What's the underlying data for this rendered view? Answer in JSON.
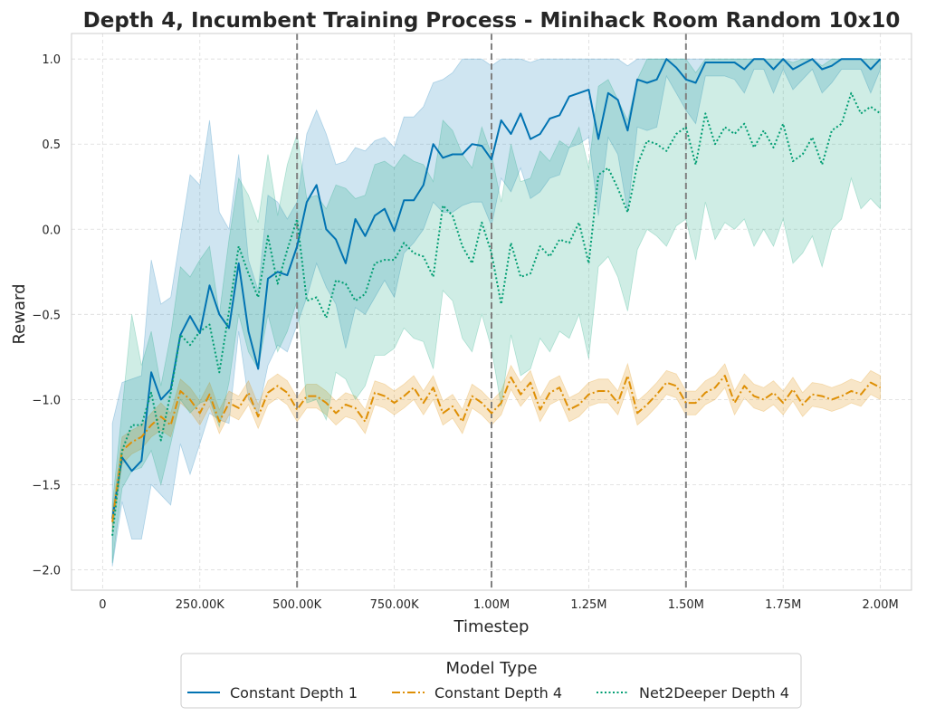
{
  "chart_data": {
    "type": "line",
    "title": "Depth 4, Incumbent Training Process - Minihack Room Random 10x10",
    "xlabel": "Timestep",
    "ylabel": "Reward",
    "xlim": [
      -80000,
      2080000
    ],
    "ylim": [
      -2.12,
      1.15
    ],
    "x_ticks": [
      0,
      250000,
      500000,
      750000,
      1000000,
      1250000,
      1500000,
      1750000,
      2000000
    ],
    "x_tick_labels": [
      "0",
      "250.00K",
      "500.00K",
      "750.00K",
      "1.00M",
      "1.25M",
      "1.50M",
      "1.75M",
      "2.00M"
    ],
    "y_ticks": [
      -2.0,
      -1.5,
      -1.0,
      -0.5,
      0.0,
      0.5,
      1.0
    ],
    "y_tick_labels": [
      "−2.0",
      "−1.5",
      "−1.0",
      "−0.5",
      "0.0",
      "0.5",
      "1.0"
    ],
    "vlines": [
      500000,
      1000000,
      1500000
    ],
    "grid": true,
    "legend": {
      "title": "Model Type",
      "placement": "bottom-center-outside"
    },
    "series": [
      {
        "name": "Constant Depth 1",
        "color": "#0173b2",
        "style": "solid",
        "x": [
          25000,
          50000,
          75000,
          100000,
          125000,
          150000,
          175000,
          200000,
          225000,
          250000,
          275000,
          300000,
          325000,
          350000,
          375000,
          400000,
          425000,
          450000,
          475000,
          500000,
          525000,
          550000,
          575000,
          600000,
          625000,
          650000,
          675000,
          700000,
          725000,
          750000,
          775000,
          800000,
          825000,
          850000,
          875000,
          900000,
          925000,
          950000,
          975000,
          1000000,
          1025000,
          1050000,
          1075000,
          1100000,
          1125000,
          1150000,
          1175000,
          1200000,
          1225000,
          1250000,
          1275000,
          1300000,
          1325000,
          1350000,
          1375000,
          1400000,
          1425000,
          1450000,
          1475000,
          1500000,
          1525000,
          1550000,
          1575000,
          1600000,
          1625000,
          1650000,
          1675000,
          1700000,
          1725000,
          1750000,
          1775000,
          1800000,
          1825000,
          1850000,
          1875000,
          1900000,
          1925000,
          1950000,
          1975000,
          2000000
        ],
        "y": [
          -1.7,
          -1.34,
          -1.42,
          -1.36,
          -0.84,
          -1.0,
          -0.94,
          -0.62,
          -0.51,
          -0.61,
          -0.33,
          -0.5,
          -0.58,
          -0.2,
          -0.6,
          -0.82,
          -0.29,
          -0.25,
          -0.27,
          -0.1,
          0.16,
          0.26,
          0.0,
          -0.06,
          -0.2,
          0.06,
          -0.04,
          0.08,
          0.12,
          -0.01,
          0.17,
          0.17,
          0.26,
          0.5,
          0.42,
          0.44,
          0.44,
          0.5,
          0.49,
          0.41,
          0.64,
          0.56,
          0.68,
          0.53,
          0.56,
          0.65,
          0.67,
          0.78,
          0.8,
          0.82,
          0.53,
          0.8,
          0.76,
          0.58,
          0.88,
          0.86,
          0.88,
          1.0,
          0.95,
          0.88,
          0.86,
          0.98,
          0.98,
          0.98,
          0.98,
          0.94,
          1.0,
          1.0,
          0.94,
          1.0,
          0.94,
          0.97,
          1.0,
          0.94,
          0.96,
          1.0,
          1.0,
          1.0,
          0.94,
          1.0
        ],
        "ci_low": [
          -1.98,
          -1.6,
          -1.82,
          -1.82,
          -1.5,
          -1.56,
          -1.62,
          -1.26,
          -1.44,
          -1.26,
          -1.08,
          -1.12,
          -1.14,
          -0.6,
          -1.0,
          -1.08,
          -0.8,
          -0.68,
          -0.72,
          -0.56,
          -0.4,
          -0.2,
          -0.34,
          -0.44,
          -0.7,
          -0.46,
          -0.5,
          -0.4,
          -0.3,
          -0.4,
          -0.14,
          -0.08,
          0.0,
          0.16,
          0.1,
          0.1,
          0.14,
          0.16,
          0.16,
          0.02,
          0.3,
          0.22,
          0.36,
          0.18,
          0.22,
          0.3,
          0.32,
          0.48,
          0.5,
          0.54,
          0.08,
          0.54,
          0.44,
          0.1,
          0.6,
          0.58,
          0.6,
          0.9,
          0.8,
          0.7,
          0.62,
          0.9,
          0.9,
          0.9,
          0.88,
          0.8,
          0.94,
          0.94,
          0.8,
          0.94,
          0.82,
          0.88,
          0.94,
          0.8,
          0.86,
          0.94,
          0.94,
          0.94,
          0.8,
          0.94
        ],
        "ci_high": [
          -1.14,
          -0.9,
          -0.88,
          -0.86,
          -0.18,
          -0.44,
          -0.4,
          -0.04,
          0.32,
          0.26,
          0.64,
          0.1,
          0.0,
          0.44,
          -0.18,
          -0.36,
          0.2,
          0.16,
          0.06,
          0.16,
          0.56,
          0.7,
          0.56,
          0.38,
          0.4,
          0.48,
          0.46,
          0.52,
          0.54,
          0.48,
          0.66,
          0.66,
          0.72,
          0.86,
          0.88,
          0.92,
          1.0,
          1.0,
          1.0,
          0.96,
          1.0,
          1.0,
          1.0,
          0.98,
          1.0,
          1.0,
          1.0,
          1.0,
          1.0,
          1.0,
          1.0,
          1.0,
          1.0,
          0.96,
          1.0,
          1.0,
          1.0,
          1.0,
          1.0,
          1.0,
          1.0,
          1.0,
          1.0,
          1.0,
          1.0,
          1.0,
          1.0,
          1.0,
          1.0,
          1.0,
          1.0,
          1.0,
          1.0,
          1.0,
          1.0,
          1.0,
          1.0,
          1.0,
          1.0,
          1.0
        ]
      },
      {
        "name": "Constant Depth 4",
        "color": "#de8f05",
        "style": "dashdot",
        "x": [
          25000,
          50000,
          75000,
          100000,
          125000,
          150000,
          175000,
          200000,
          225000,
          250000,
          275000,
          300000,
          325000,
          350000,
          375000,
          400000,
          425000,
          450000,
          475000,
          500000,
          525000,
          550000,
          575000,
          600000,
          625000,
          650000,
          675000,
          700000,
          725000,
          750000,
          775000,
          800000,
          825000,
          850000,
          875000,
          900000,
          925000,
          950000,
          975000,
          1000000,
          1025000,
          1050000,
          1075000,
          1100000,
          1125000,
          1150000,
          1175000,
          1200000,
          1225000,
          1250000,
          1275000,
          1300000,
          1325000,
          1350000,
          1375000,
          1400000,
          1425000,
          1450000,
          1475000,
          1500000,
          1525000,
          1550000,
          1575000,
          1600000,
          1625000,
          1650000,
          1675000,
          1700000,
          1725000,
          1750000,
          1775000,
          1800000,
          1825000,
          1850000,
          1875000,
          1900000,
          1925000,
          1950000,
          1975000,
          2000000
        ],
        "y": [
          -1.72,
          -1.3,
          -1.25,
          -1.22,
          -1.15,
          -1.1,
          -1.15,
          -0.95,
          -1.0,
          -1.08,
          -0.97,
          -1.13,
          -1.02,
          -1.05,
          -0.96,
          -1.1,
          -0.96,
          -0.92,
          -0.96,
          -1.06,
          -0.98,
          -0.98,
          -1.02,
          -1.08,
          -1.03,
          -1.05,
          -1.13,
          -0.96,
          -0.98,
          -1.02,
          -0.98,
          -0.93,
          -1.02,
          -0.93,
          -1.08,
          -1.04,
          -1.13,
          -0.98,
          -1.02,
          -1.08,
          -1.02,
          -0.87,
          -0.97,
          -0.9,
          -1.06,
          -0.96,
          -0.93,
          -1.06,
          -1.03,
          -0.97,
          -0.95,
          -0.95,
          -1.02,
          -0.86,
          -1.08,
          -1.03,
          -0.97,
          -0.9,
          -0.92,
          -1.02,
          -1.02,
          -0.96,
          -0.93,
          -0.86,
          -1.02,
          -0.92,
          -0.98,
          -1.0,
          -0.96,
          -1.02,
          -0.94,
          -1.03,
          -0.97,
          -0.98,
          -1.0,
          -0.98,
          -0.95,
          -0.97,
          -0.9,
          -0.93
        ],
        "ci_low": [
          -1.78,
          -1.38,
          -1.32,
          -1.29,
          -1.22,
          -1.18,
          -1.22,
          -1.02,
          -1.07,
          -1.15,
          -1.04,
          -1.2,
          -1.09,
          -1.12,
          -1.03,
          -1.17,
          -1.03,
          -0.99,
          -1.03,
          -1.13,
          -1.05,
          -1.05,
          -1.09,
          -1.15,
          -1.1,
          -1.12,
          -1.2,
          -1.03,
          -1.05,
          -1.09,
          -1.05,
          -1.0,
          -1.09,
          -1.0,
          -1.15,
          -1.11,
          -1.2,
          -1.05,
          -1.09,
          -1.15,
          -1.09,
          -0.94,
          -1.04,
          -0.97,
          -1.13,
          -1.03,
          -1.0,
          -1.13,
          -1.1,
          -1.04,
          -1.02,
          -1.02,
          -1.09,
          -0.93,
          -1.15,
          -1.1,
          -1.04,
          -0.97,
          -0.99,
          -1.09,
          -1.09,
          -1.03,
          -1.0,
          -0.93,
          -1.09,
          -0.99,
          -1.05,
          -1.07,
          -1.03,
          -1.09,
          -1.01,
          -1.1,
          -1.04,
          -1.05,
          -1.07,
          -1.05,
          -1.02,
          -1.04,
          -0.97,
          -1.0
        ],
        "ci_high": [
          -1.66,
          -1.22,
          -1.18,
          -1.15,
          -1.08,
          -1.02,
          -1.08,
          -0.88,
          -0.93,
          -1.01,
          -0.9,
          -1.06,
          -0.95,
          -0.98,
          -0.89,
          -1.03,
          -0.89,
          -0.85,
          -0.89,
          -0.99,
          -0.91,
          -0.91,
          -0.95,
          -1.01,
          -0.96,
          -0.98,
          -1.06,
          -0.89,
          -0.91,
          -0.95,
          -0.91,
          -0.86,
          -0.95,
          -0.86,
          -1.01,
          -0.97,
          -1.06,
          -0.91,
          -0.95,
          -1.01,
          -0.95,
          -0.8,
          -0.9,
          -0.83,
          -0.99,
          -0.89,
          -0.86,
          -0.99,
          -0.96,
          -0.9,
          -0.88,
          -0.88,
          -0.95,
          -0.79,
          -1.01,
          -0.96,
          -0.9,
          -0.83,
          -0.85,
          -0.95,
          -0.95,
          -0.89,
          -0.86,
          -0.79,
          -0.95,
          -0.85,
          -0.91,
          -0.93,
          -0.89,
          -0.95,
          -0.87,
          -0.96,
          -0.9,
          -0.91,
          -0.93,
          -0.91,
          -0.88,
          -0.9,
          -0.83,
          -0.86
        ]
      },
      {
        "name": "Net2Deeper Depth 4",
        "color": "#029e73",
        "style": "dotted",
        "x": [
          25000,
          50000,
          75000,
          100000,
          125000,
          150000,
          175000,
          200000,
          225000,
          250000,
          275000,
          300000,
          325000,
          350000,
          375000,
          400000,
          425000,
          450000,
          475000,
          500000,
          525000,
          550000,
          575000,
          600000,
          625000,
          650000,
          675000,
          700000,
          725000,
          750000,
          775000,
          800000,
          825000,
          850000,
          875000,
          900000,
          925000,
          950000,
          975000,
          1000000,
          1025000,
          1050000,
          1075000,
          1100000,
          1125000,
          1150000,
          1175000,
          1200000,
          1225000,
          1250000,
          1275000,
          1300000,
          1325000,
          1350000,
          1375000,
          1400000,
          1425000,
          1450000,
          1475000,
          1500000,
          1525000,
          1550000,
          1575000,
          1600000,
          1625000,
          1650000,
          1675000,
          1700000,
          1725000,
          1750000,
          1775000,
          1800000,
          1825000,
          1850000,
          1875000,
          1900000,
          1925000,
          1950000,
          1975000,
          2000000
        ],
        "y": [
          -1.8,
          -1.3,
          -1.15,
          -1.15,
          -0.96,
          -1.24,
          -0.96,
          -0.62,
          -0.68,
          -0.6,
          -0.56,
          -0.84,
          -0.48,
          -0.1,
          -0.26,
          -0.4,
          -0.04,
          -0.32,
          -0.12,
          0.06,
          -0.42,
          -0.4,
          -0.52,
          -0.3,
          -0.32,
          -0.42,
          -0.38,
          -0.2,
          -0.18,
          -0.18,
          -0.08,
          -0.14,
          -0.16,
          -0.28,
          0.14,
          0.08,
          -0.1,
          -0.2,
          0.04,
          -0.14,
          -0.44,
          -0.08,
          -0.28,
          -0.26,
          -0.1,
          -0.16,
          -0.06,
          -0.08,
          0.04,
          -0.2,
          0.32,
          0.36,
          0.24,
          0.1,
          0.38,
          0.52,
          0.5,
          0.46,
          0.56,
          0.6,
          0.38,
          0.68,
          0.5,
          0.6,
          0.56,
          0.62,
          0.48,
          0.58,
          0.48,
          0.62,
          0.4,
          0.44,
          0.54,
          0.38,
          0.58,
          0.62,
          0.8,
          0.68,
          0.72,
          0.68
        ],
        "ci_low": [
          -1.96,
          -1.52,
          -1.42,
          -1.4,
          -1.3,
          -1.5,
          -1.26,
          -1.0,
          -1.08,
          -1.02,
          -1.0,
          -1.16,
          -0.9,
          -0.5,
          -0.72,
          -0.82,
          -0.5,
          -0.72,
          -0.6,
          -0.42,
          -1.02,
          -1.0,
          -1.12,
          -0.84,
          -0.88,
          -1.0,
          -0.92,
          -0.74,
          -0.74,
          -0.7,
          -0.58,
          -0.64,
          -0.66,
          -0.82,
          -0.36,
          -0.42,
          -0.64,
          -0.72,
          -0.5,
          -0.7,
          -1.04,
          -0.62,
          -0.86,
          -0.82,
          -0.64,
          -0.72,
          -0.6,
          -0.64,
          -0.5,
          -0.76,
          -0.22,
          -0.16,
          -0.28,
          -0.48,
          -0.12,
          0.0,
          -0.04,
          -0.1,
          0.02,
          0.06,
          -0.18,
          0.16,
          -0.06,
          0.04,
          0.0,
          0.06,
          -0.1,
          0.0,
          -0.1,
          0.06,
          -0.2,
          -0.14,
          -0.04,
          -0.22,
          0.0,
          0.06,
          0.3,
          0.12,
          0.18,
          0.12
        ],
        "ci_high": [
          -1.62,
          -1.06,
          -0.5,
          -0.8,
          -0.6,
          -0.92,
          -0.62,
          -0.22,
          -0.28,
          -0.18,
          -0.1,
          -0.5,
          -0.06,
          0.3,
          0.2,
          0.04,
          0.44,
          0.08,
          0.38,
          0.56,
          0.18,
          0.2,
          0.12,
          0.26,
          0.24,
          0.18,
          0.2,
          0.38,
          0.4,
          0.36,
          0.44,
          0.4,
          0.38,
          0.28,
          0.64,
          0.58,
          0.44,
          0.36,
          0.6,
          0.44,
          0.16,
          0.5,
          0.28,
          0.3,
          0.46,
          0.4,
          0.52,
          0.48,
          0.6,
          0.36,
          0.84,
          0.88,
          0.76,
          0.64,
          0.88,
          1.0,
          1.0,
          1.0,
          1.0,
          1.0,
          0.92,
          1.0,
          1.0,
          1.0,
          1.0,
          1.0,
          1.0,
          1.0,
          1.0,
          1.0,
          0.98,
          1.0,
          1.0,
          0.96,
          1.0,
          1.0,
          1.0,
          1.0,
          1.0,
          1.0
        ]
      }
    ]
  }
}
